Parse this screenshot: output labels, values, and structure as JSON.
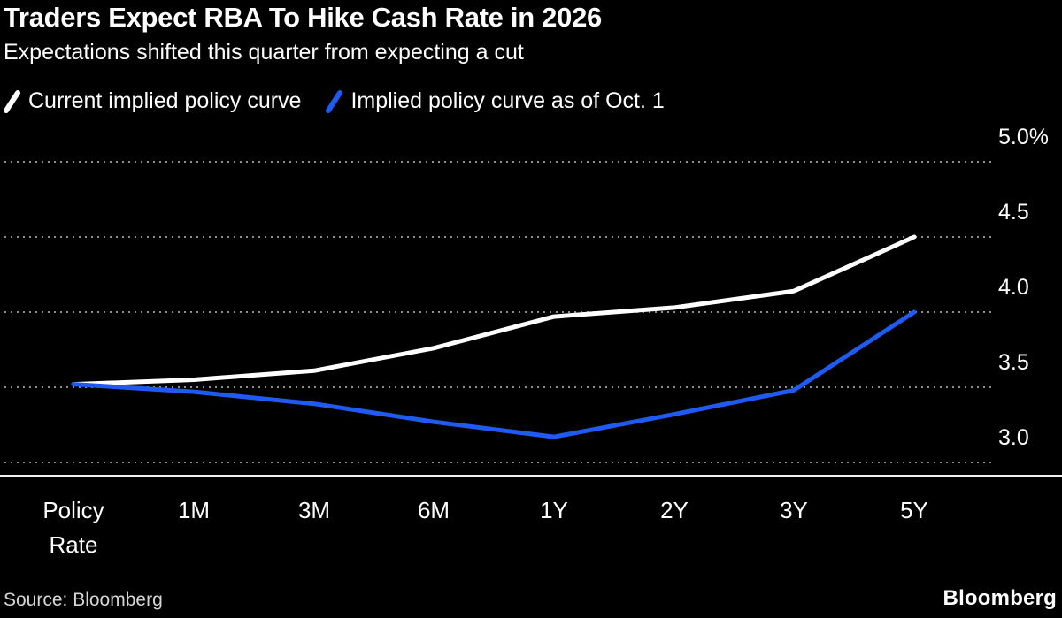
{
  "header": {
    "title": "Traders Expect RBA To Hike Cash Rate in 2026",
    "subtitle": "Expectations shifted this quarter from expecting a cut"
  },
  "legend": [
    {
      "label": "Current implied policy curve",
      "color": "#ffffff"
    },
    {
      "label": "Implied policy curve as of Oct. 1",
      "color": "#1f5af2"
    }
  ],
  "chart_data": {
    "type": "line",
    "title": "Traders Expect RBA To Hike Cash Rate in 2026",
    "subtitle": "Expectations shifted this quarter from expecting a cut",
    "categories": [
      "Policy Rate",
      "1M",
      "3M",
      "6M",
      "1Y",
      "2Y",
      "3Y",
      "5Y"
    ],
    "series": [
      {
        "name": "Current implied policy curve",
        "color": "#ffffff",
        "values": [
          3.52,
          3.55,
          3.61,
          3.76,
          3.97,
          4.03,
          4.14,
          4.5
        ]
      },
      {
        "name": "Implied policy curve as of Oct. 1",
        "color": "#1f5af2",
        "values": [
          3.52,
          3.47,
          3.39,
          3.27,
          3.17,
          3.32,
          3.48,
          4.0
        ]
      }
    ],
    "ylim": [
      2.9,
      5.15
    ],
    "yticks": [
      {
        "value": 5.0,
        "label": "5.0%"
      },
      {
        "value": 4.5,
        "label": "4.5"
      },
      {
        "value": 4.0,
        "label": "4.0"
      },
      {
        "value": 3.5,
        "label": "3.5"
      },
      {
        "value": 3.0,
        "label": "3.0"
      }
    ],
    "ylabel": "",
    "xlabel": "",
    "grid": "horizontal-dotted",
    "legend_position": "top-left"
  },
  "footer": {
    "source": "Source: Bloomberg",
    "logo": "Bloomberg"
  },
  "colors": {
    "background": "#000000",
    "text": "#ffffff",
    "grid": "#8f8f8f",
    "axis": "#f0f0f0",
    "accent_blue": "#1f5af2"
  }
}
